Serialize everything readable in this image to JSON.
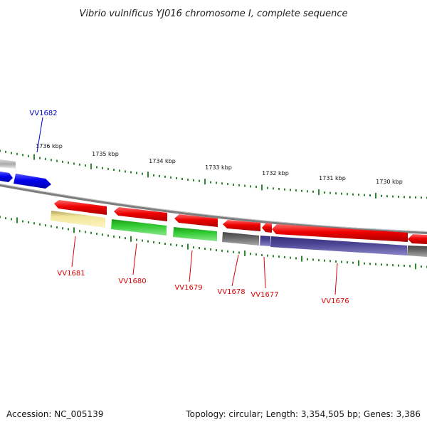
{
  "title": "Vibrio vulnificus YJ016 chromosome I, complete sequence",
  "footer": {
    "accession": "Accession: NC_005139",
    "topology": "Topology: circular; Length: 3,354,505 bp; Genes: 3,386"
  },
  "ruler": {
    "ticks": [
      "1736 kbp",
      "1735 kbp",
      "1734 kbp",
      "1733 kbp",
      "1732 kbp",
      "1731 kbp",
      "1730 kbp"
    ]
  },
  "genes": [
    {
      "name": "VV1682",
      "color": "#0000cc"
    },
    {
      "name": "VV1681",
      "color": "#dd0000"
    },
    {
      "name": "VV1680",
      "color": "#dd0000"
    },
    {
      "name": "VV1679",
      "color": "#dd0000"
    },
    {
      "name": "VV1678",
      "color": "#dd0000"
    },
    {
      "name": "VV1677",
      "color": "#dd0000"
    },
    {
      "name": "VV1676",
      "color": "#dd0000"
    }
  ],
  "colors": {
    "backbone": "#888888",
    "ruler_tick": "#2a8a2a",
    "cds_forward": "#0000ee",
    "cds_reverse": "#ee0000",
    "cog_yellow": "#f3e79a",
    "cog_green": "#33cc33",
    "cog_gray": "#666666",
    "cog_purple": "#4a4494"
  }
}
